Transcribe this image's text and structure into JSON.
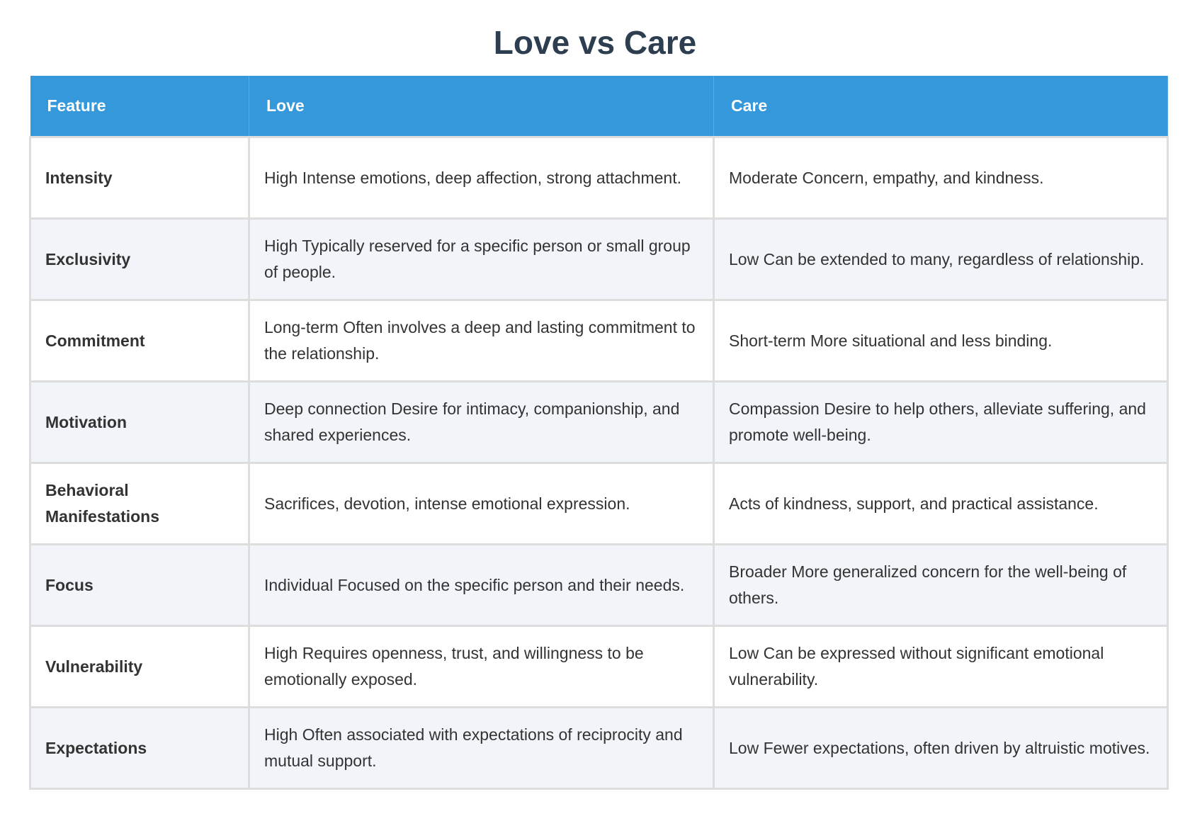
{
  "title": "Love vs Care",
  "colors": {
    "header": "#3498db",
    "title": "#2c3e50",
    "alt_row": "#f1f4f9"
  },
  "table": {
    "headers": [
      "Feature",
      "Love",
      "Care"
    ],
    "rows": [
      [
        "Intensity",
        "High Intense emotions, deep affection, strong attachment.",
        "Moderate Concern, empathy, and kindness."
      ],
      [
        "Exclusivity",
        "High Typically reserved for a specific person or small group of people.",
        "Low Can be extended to many, regardless of relationship."
      ],
      [
        "Commitment",
        "Long-term Often involves a deep and lasting commitment to the relationship.",
        "Short-term More situational and less binding."
      ],
      [
        "Motivation",
        "Deep connection Desire for intimacy, companionship, and shared experiences.",
        "Compassion Desire to help others, alleviate suffering, and promote well-being."
      ],
      [
        "Behavioral Manifestations",
        "Sacrifices, devotion, intense emotional expression.",
        "Acts of kindness, support, and practical assistance."
      ],
      [
        "Focus",
        "Individual Focused on the specific person and their needs.",
        "Broader More generalized concern for the well-being of others."
      ],
      [
        "Vulnerability",
        "High Requires openness, trust, and willingness to be emotionally exposed.",
        "Low Can be expressed without significant emotional vulnerability."
      ],
      [
        "Expectations",
        "High Often associated with expectations of reciprocity and mutual support.",
        "Low Fewer expectations, often driven by altruistic motives."
      ]
    ]
  }
}
